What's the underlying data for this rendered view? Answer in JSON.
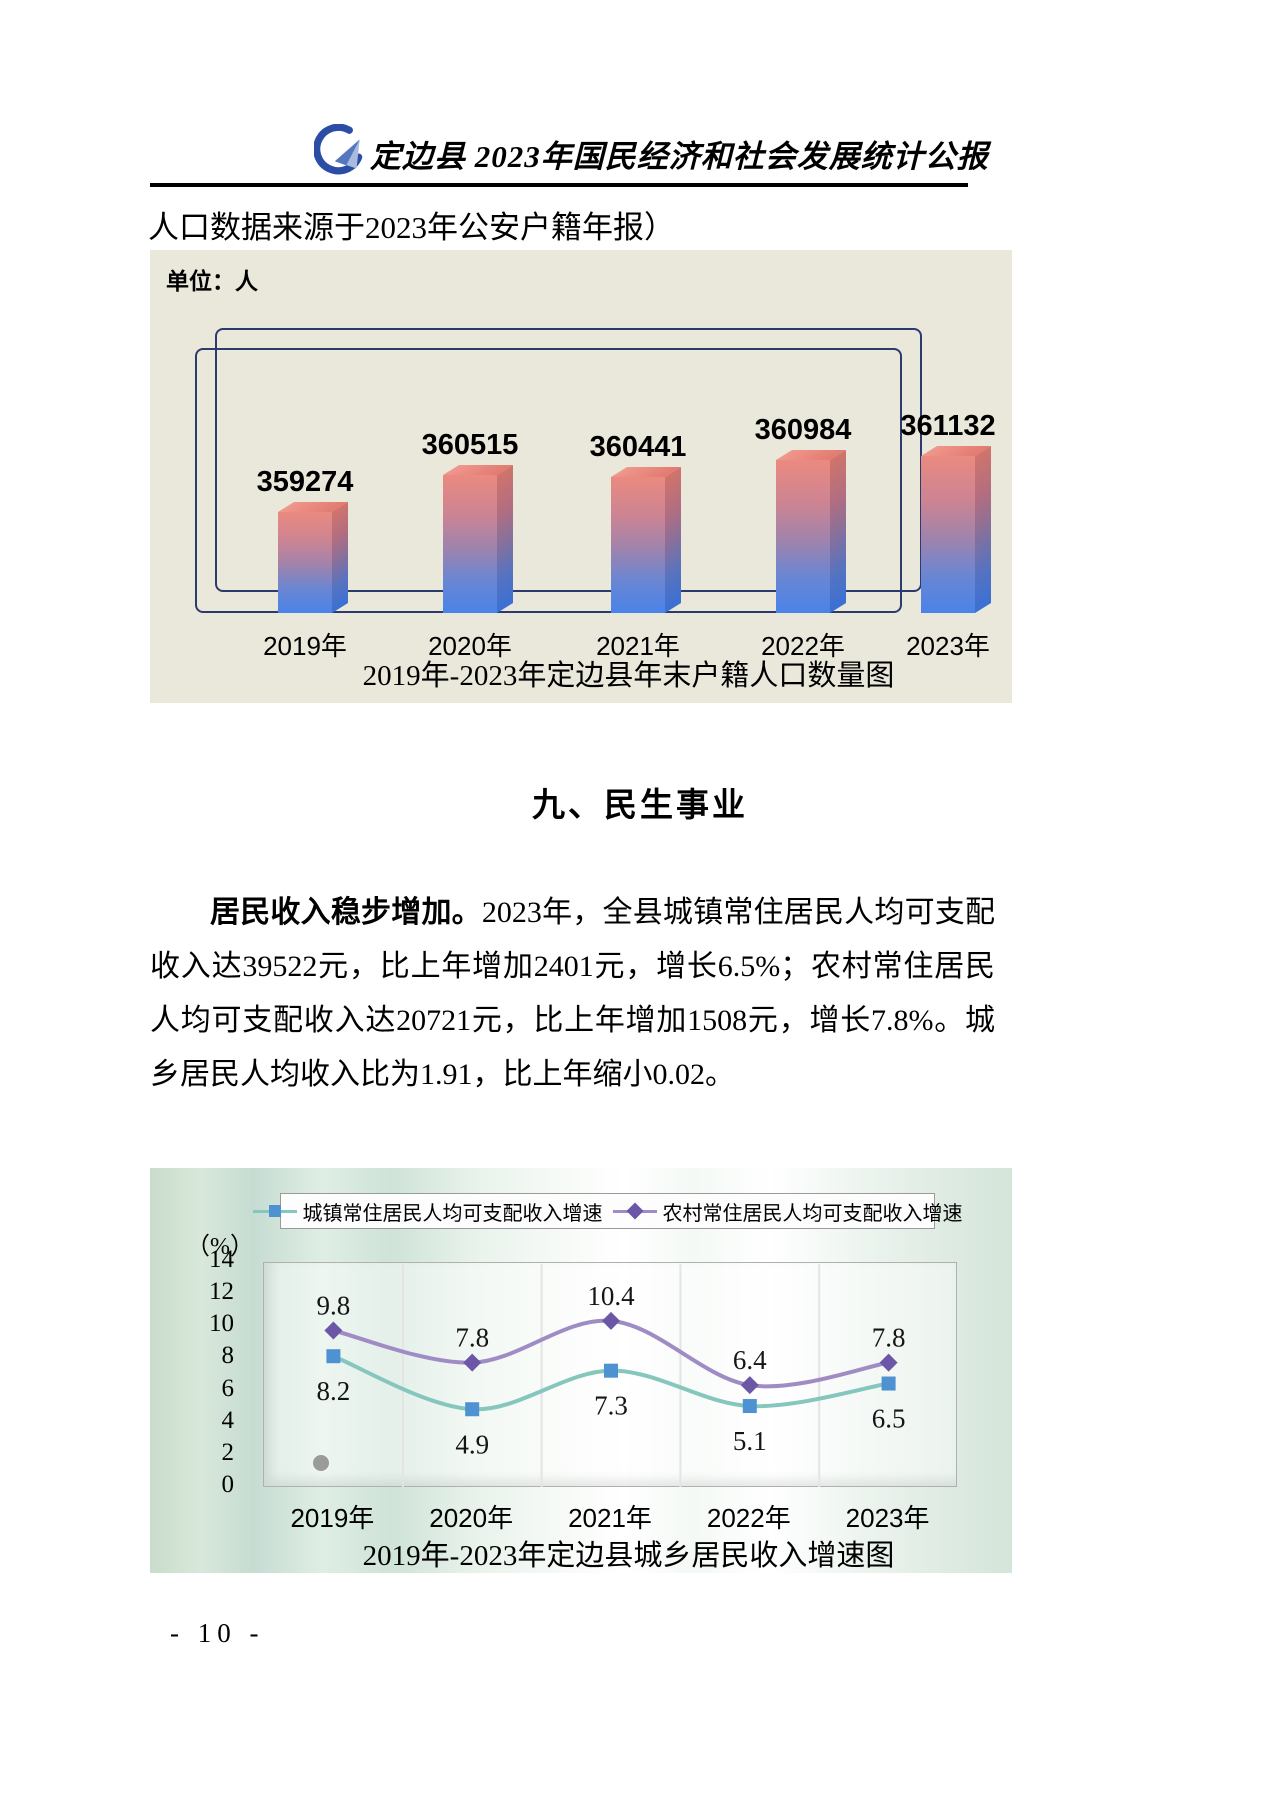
{
  "header": {
    "title": "定边县 2023年国民经济和社会发展统计公报"
  },
  "intro_text": "人口数据来源于2023年公安户籍年报）",
  "bar_chart": {
    "unit_label": "单位：人",
    "title": "2019年-2023年定边县年末户籍人口数量图"
  },
  "section": {
    "heading": "九、民生事业"
  },
  "paragraph": {
    "lead": "居民收入稳步增加。",
    "body": "2023年，全县城镇常住居民人均可支配收入达39522元，比上年增加2401元，增长6.5%；农村常住居民人均可支配收入达20721元，比上年增加1508元，增长7.8%。城乡居民人均收入比为1.91，比上年缩小0.02。"
  },
  "line_chart": {
    "unit_label": "（%）",
    "title": "2019年-2023年定边县城乡居民收入增速图"
  },
  "page": {
    "number_label": "- 10 -"
  },
  "chart_data": [
    {
      "type": "bar",
      "title": "2019年-2023年定边县年末户籍人口数量图",
      "unit": "人",
      "categories": [
        "2019年",
        "2020年",
        "2021年",
        "2022年",
        "2023年"
      ],
      "values": [
        359274,
        360515,
        360441,
        360984,
        361132
      ],
      "value_labels_shown": true,
      "bar_color_top": "#ea8a80",
      "bar_color_bottom": "#4a83e8",
      "frame_color": "#2c3a6e",
      "panel_color": "#eae7db"
    },
    {
      "type": "line",
      "title": "2019年-2023年定边县城乡居民收入增速图",
      "ylabel": "（%）",
      "ylim": [
        0,
        14
      ],
      "yticks": [
        14,
        12,
        10,
        8,
        6,
        4,
        2,
        0
      ],
      "categories": [
        "2019年",
        "2020年",
        "2021年",
        "2022年",
        "2023年"
      ],
      "series": [
        {
          "name": "城镇常住居民人均可支配收入增速",
          "values": [
            8.2,
            4.9,
            7.3,
            5.1,
            6.5
          ],
          "line_color": "#85c6bd",
          "marker": "square",
          "marker_color": "#4e92d2",
          "label_position": "below"
        },
        {
          "name": "农村常住居民人均可支配收入增速",
          "values": [
            9.8,
            7.8,
            10.4,
            6.4,
            7.8
          ],
          "line_color": "#a08cc4",
          "marker": "diamond",
          "marker_color": "#6b57a5",
          "label_position": "above"
        }
      ],
      "legend_position": "top",
      "grid": "vertical",
      "stray_gray_dot": {
        "x_category": "2019年",
        "approx_value": 1.4
      }
    }
  ]
}
